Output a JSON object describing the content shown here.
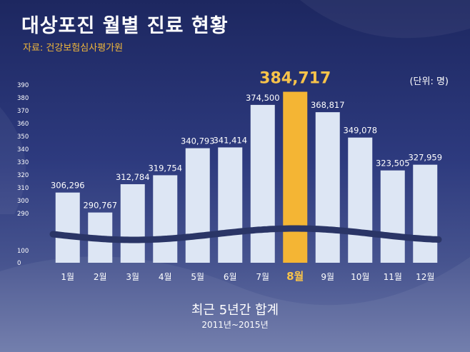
{
  "header": {
    "title": "대상포진 월별 진료 현황",
    "source": "자료: 건강보험심사평가원"
  },
  "unit_label": "(단위: 명)",
  "caption": {
    "main": "최근 5년간 합계",
    "sub": "2011년~2015년"
  },
  "colors": {
    "bar": "#dde6f4",
    "bar_highlight": "#f4b534",
    "highlight_text": "#f7c34a",
    "text": "#ffffff",
    "wave": "#2a3566"
  },
  "chart_data": {
    "type": "bar",
    "categories": [
      "1월",
      "2월",
      "3월",
      "4월",
      "5월",
      "6월",
      "7월",
      "8월",
      "9월",
      "10월",
      "11월",
      "12월"
    ],
    "values": [
      306296,
      290767,
      312784,
      319754,
      340793,
      341414,
      374500,
      384717,
      368817,
      349078,
      323505,
      327959
    ],
    "value_labels": [
      "306,296",
      "290,767",
      "312,784",
      "319,754",
      "340,793",
      "341,414",
      "374,500",
      "384,717",
      "368,817",
      "349,078",
      "323,505",
      "327,959"
    ],
    "highlight_index": 7,
    "yticks": [
      0,
      100,
      290,
      300,
      310,
      320,
      330,
      340,
      350,
      360,
      370,
      380,
      390
    ],
    "ytick_labels": [
      "0",
      "100",
      "290",
      "300",
      "310",
      "320",
      "330",
      "340",
      "350",
      "360",
      "370",
      "380",
      "390"
    ],
    "ylim": [
      0,
      390
    ],
    "axis_break": true,
    "value_scale": 1000,
    "title": "대상포진 월별 진료 현황",
    "ylabel": "(단위: 명)",
    "xlabel": "",
    "grid": false
  }
}
